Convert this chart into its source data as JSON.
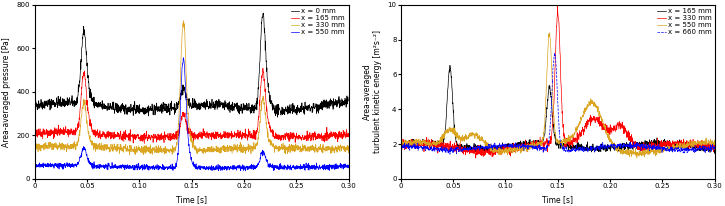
{
  "left_ylabel": "Area-averaged pressure [Pa]",
  "right_ylabel": "Area-averaged\nturbulent kinetic energy [m²s⁻²]",
  "xlabel": "Time [s]",
  "left_ylim": [
    0,
    800
  ],
  "right_ylim": [
    0,
    10
  ],
  "left_yticks": [
    0,
    200,
    400,
    600,
    800
  ],
  "right_yticks": [
    0,
    2,
    4,
    6,
    8,
    10
  ],
  "xlim": [
    0,
    0.3
  ],
  "xticks": [
    0,
    0.05,
    0.1,
    0.15,
    0.2,
    0.25,
    0.3
  ],
  "left_legend": [
    "x = 0 mm",
    "x = 165 mm",
    "x = 330 mm",
    "x = 550 mm"
  ],
  "right_legend": [
    "x = 165 mm",
    "x = 330 mm",
    "x = 550 mm",
    "x = 660 mm"
  ],
  "left_colors": [
    "black",
    "red",
    "#DAA520",
    "blue"
  ],
  "right_colors": [
    "black",
    "red",
    "#DAA520",
    "blue"
  ],
  "spike_times": [
    0.047,
    0.142,
    0.218
  ],
  "figsize": [
    7.25,
    2.06
  ],
  "dpi": 100
}
